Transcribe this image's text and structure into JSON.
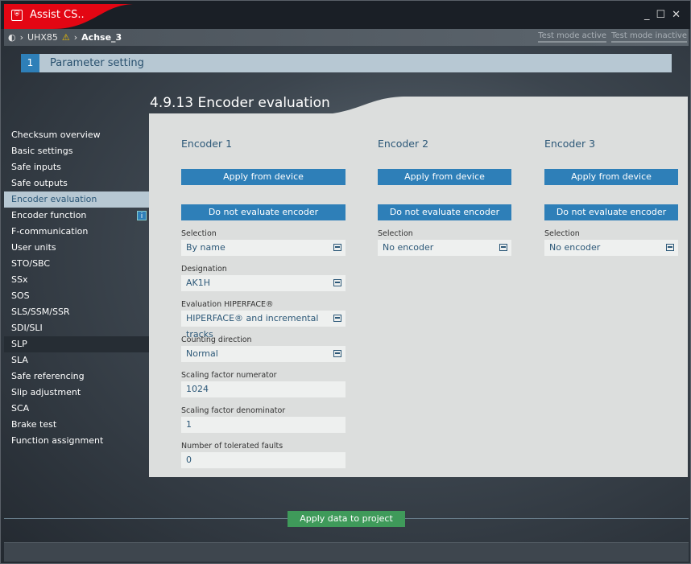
{
  "window": {
    "title": "Assist CS..",
    "minimize": "_",
    "maximize": "☐",
    "close": "✕"
  },
  "breadcrumb": {
    "items": [
      "UHX85",
      "Achse_3"
    ]
  },
  "test_modes": [
    "Test mode active",
    "Test mode inactive"
  ],
  "step": {
    "number": "1",
    "label": "Parameter setting"
  },
  "page_title": "4.9.13 Encoder evaluation",
  "sidebar": {
    "items": [
      {
        "label": "Checksum overview"
      },
      {
        "label": "Basic settings"
      },
      {
        "label": "Safe inputs"
      },
      {
        "label": "Safe outputs"
      },
      {
        "label": "Encoder evaluation",
        "active": true
      },
      {
        "label": "Encoder function",
        "info": "i"
      },
      {
        "label": "F-communication"
      },
      {
        "label": "User units"
      },
      {
        "label": "STO/SBC"
      },
      {
        "label": "SSx"
      },
      {
        "label": "SOS"
      },
      {
        "label": "SLS/SSM/SSR"
      },
      {
        "label": "SDI/SLI"
      },
      {
        "label": "SLP"
      },
      {
        "label": "SLA"
      },
      {
        "label": "Safe referencing"
      },
      {
        "label": "Slip adjustment"
      },
      {
        "label": "SCA"
      },
      {
        "label": "Brake test"
      },
      {
        "label": "Function assignment"
      }
    ]
  },
  "encoders": [
    {
      "title": "Encoder 1",
      "apply": "Apply from device",
      "no_eval": "Do not evaluate encoder",
      "fields": [
        {
          "label": "Selection",
          "value": "By name",
          "dropdown": true
        },
        {
          "label": "Designation",
          "value": "AK1H",
          "dropdown": true
        },
        {
          "label": "Evaluation HIPERFACE®",
          "value": "HIPERFACE® and incremental tracks",
          "dropdown": true
        },
        {
          "label": "Counting direction",
          "value": "Normal",
          "dropdown": true
        },
        {
          "label": "Scaling factor numerator",
          "value": "1024"
        },
        {
          "label": "Scaling factor denominator",
          "value": "1"
        },
        {
          "label": "Number of tolerated faults",
          "value": "0"
        }
      ]
    },
    {
      "title": "Encoder 2",
      "apply": "Apply from device",
      "no_eval": "Do not evaluate encoder",
      "fields": [
        {
          "label": "Selection",
          "value": "No encoder",
          "dropdown": true
        }
      ]
    },
    {
      "title": "Encoder 3",
      "apply": "Apply from device",
      "no_eval": "Do not evaluate encoder",
      "fields": [
        {
          "label": "Selection",
          "value": "No encoder",
          "dropdown": true
        }
      ]
    }
  ],
  "apply_project": "Apply data to project",
  "colors": {
    "accent": "#2e7fb8",
    "apply_green": "#3f9a5a",
    "brand_red": "#e30613"
  }
}
